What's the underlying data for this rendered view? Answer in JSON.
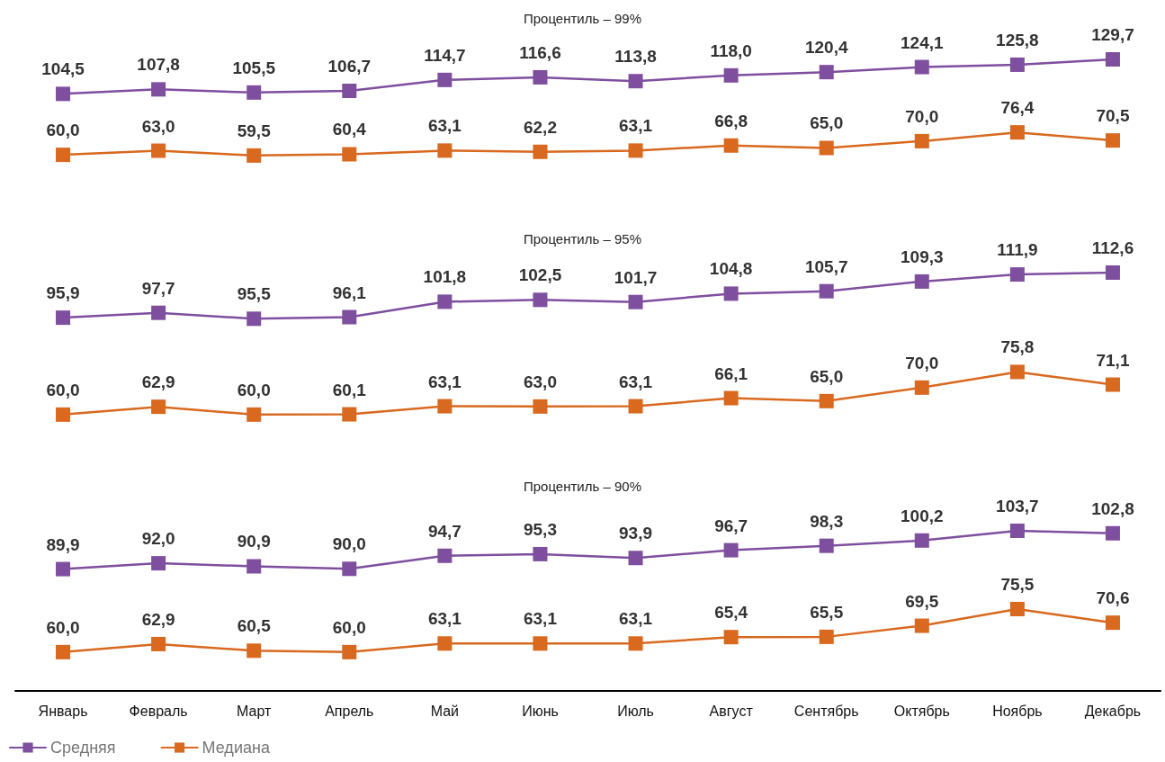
{
  "chart_data": [
    {
      "type": "line",
      "title": "Процентиль – 99%",
      "categories": [
        null,
        null,
        null,
        null,
        null,
        null,
        null,
        null,
        null,
        null,
        null,
        null
      ],
      "series": [
        {
          "color": "#7f4f9f",
          "values": [
            104.5,
            107.8,
            105.5,
            106.7,
            114.7,
            116.6,
            113.8,
            118.0,
            120.4,
            124.1,
            125.8,
            129.7
          ],
          "value_labels": [
            "104,5",
            "107,8",
            "105,5",
            "106,7",
            "114,7",
            "116,6",
            "113,8",
            "118,0",
            "120,4",
            "124,1",
            "125,8",
            "129,7"
          ]
        },
        {
          "color": "#d8691f",
          "values": [
            60.0,
            63.0,
            59.5,
            60.4,
            63.1,
            62.2,
            63.1,
            66.8,
            65.0,
            70.0,
            76.4,
            70.5
          ],
          "value_labels": [
            "60,0",
            "63,0",
            "59,5",
            "60,4",
            "63,1",
            "62,2",
            "63,1",
            "66,8",
            "65,0",
            "70,0",
            "76,4",
            "70,5"
          ]
        }
      ],
      "marker": "square",
      "tick_labels": false,
      "grid": false
    },
    {
      "type": "line",
      "title": "Процентиль – 95%",
      "categories": [
        null,
        null,
        null,
        null,
        null,
        null,
        null,
        null,
        null,
        null,
        null,
        null
      ],
      "series": [
        {
          "color": "#7f4f9f",
          "values": [
            95.9,
            97.7,
            95.5,
            96.1,
            101.8,
            102.5,
            101.7,
            104.8,
            105.7,
            109.3,
            111.9,
            112.6
          ],
          "value_labels": [
            "95,9",
            "97,7",
            "95,5",
            "96,1",
            "101,8",
            "102,5",
            "101,7",
            "104,8",
            "105,7",
            "109,3",
            "111,9",
            "112,6"
          ]
        },
        {
          "color": "#d8691f",
          "values": [
            60.0,
            62.9,
            60.0,
            60.1,
            63.1,
            63.0,
            63.1,
            66.1,
            65.0,
            70.0,
            75.8,
            71.1
          ],
          "value_labels": [
            "60,0",
            "62,9",
            "60,0",
            "60,1",
            "63,1",
            "63,0",
            "63,1",
            "66,1",
            "65,0",
            "70,0",
            "75,8",
            "71,1"
          ]
        }
      ],
      "marker": "square",
      "tick_labels": false,
      "grid": false
    },
    {
      "type": "line",
      "title": "Процентиль – 90%",
      "categories": [
        "Январь",
        "Февраль",
        "Март",
        "Апрель",
        "Май",
        "Июнь",
        "Июль",
        "Август",
        "Сентябрь",
        "Октябрь",
        "Ноябрь",
        "Декабрь"
      ],
      "series": [
        {
          "name": "Средняя",
          "color": "#7f4f9f",
          "values": [
            89.9,
            92.0,
            90.9,
            90.0,
            94.7,
            95.3,
            93.9,
            96.7,
            98.3,
            100.2,
            103.7,
            102.8
          ],
          "value_labels": [
            "89,9",
            "92,0",
            "90,9",
            "90,0",
            "94,7",
            "95,3",
            "93,9",
            "96,7",
            "98,3",
            "100,2",
            "103,7",
            "102,8"
          ]
        },
        {
          "name": "Медиана",
          "color": "#d8691f",
          "values": [
            60.0,
            62.9,
            60.5,
            60.0,
            63.1,
            63.1,
            63.1,
            65.4,
            65.5,
            69.5,
            75.5,
            70.6
          ],
          "value_labels": [
            "60,0",
            "62,9",
            "60,5",
            "60,0",
            "63,1",
            "63,1",
            "63,1",
            "65,4",
            "65,5",
            "69,5",
            "75,5",
            "70,6"
          ]
        }
      ],
      "marker": "square",
      "tick_labels": "x",
      "grid": false,
      "legend": "bottom left"
    }
  ]
}
